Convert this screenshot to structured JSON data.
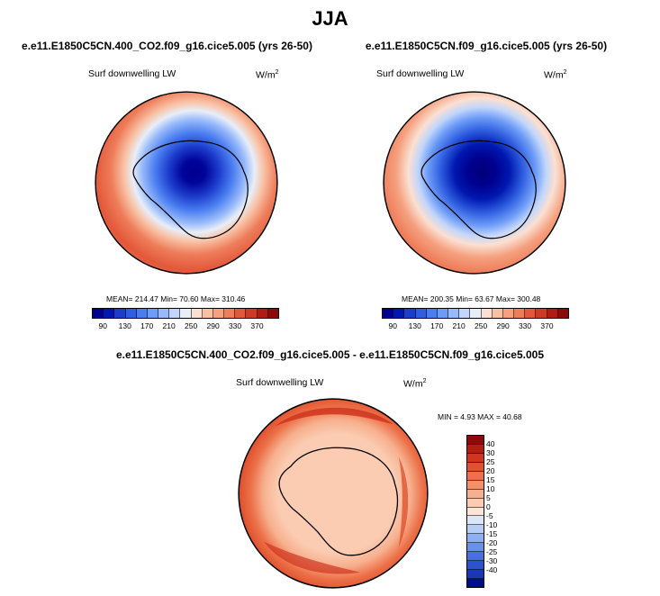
{
  "title": "JJA",
  "panels": [
    {
      "case_title": "e.e11.E1850C5CN.400_CO2.f09_g16.cice5.005 (yrs 26-50)",
      "variable": "Surf downwelling LW",
      "units_base": "W/m",
      "units_exp": "2",
      "stats": "MEAN= 214.47  Min=  70.60  Max= 310.46"
    },
    {
      "case_title": "e.e11.E1850C5CN.f09_g16.cice5.005 (yrs 26-50)",
      "variable": "Surf downwelling LW",
      "units_base": "W/m",
      "units_exp": "2",
      "stats": "MEAN= 200.35  Min=  63.67  Max= 300.48"
    }
  ],
  "diff": {
    "case_title": "e.e11.E1850C5CN.400_CO2.f09_g16.cice5.005 - e.e11.E1850C5CN.f09_g16.cice5.005",
    "variable": "Surf downwelling LW",
    "units_base": "W/m",
    "units_exp": "2",
    "stats": "MIN =   4.93 MAX =  40.68"
  },
  "abs_colorbar": {
    "labels": [
      "90",
      "130",
      "170",
      "210",
      "250",
      "290",
      "330",
      "370"
    ],
    "colors": [
      "#00008f",
      "#0018b0",
      "#1c3ccc",
      "#2f5ee0",
      "#4a7ef0",
      "#6d9cf7",
      "#98bafa",
      "#c2d6fb",
      "#e8eef8",
      "#fbe0d2",
      "#f9c1a4",
      "#f5a07e",
      "#ee7d5a",
      "#e3583a",
      "#cf3a24",
      "#b01c14",
      "#8c0a0a"
    ]
  },
  "diff_colorbar": {
    "labels": [
      "40",
      "30",
      "25",
      "20",
      "15",
      "10",
      "5",
      "0",
      "-5",
      "-10",
      "-15",
      "-20",
      "-25",
      "-30",
      "-40"
    ],
    "colors": [
      "#8c0a0a",
      "#b31d12",
      "#cf351f",
      "#e0522f",
      "#ec7048",
      "#f39068",
      "#f7b08e",
      "#fbccb2",
      "#fde4d6",
      "#dbe6f8",
      "#b7cdf6",
      "#8eaff1",
      "#6990ea",
      "#4770df",
      "#2c52cf",
      "#1a37b8",
      "#000c8c"
    ]
  }
}
